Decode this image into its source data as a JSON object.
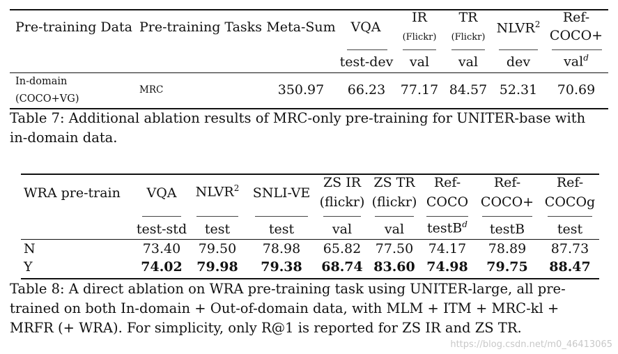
{
  "table7": {
    "headers": [
      {
        "line1": "Pre-training Data"
      },
      {
        "line1": "Pre-training Tasks"
      },
      {
        "line1": "Meta-Sum"
      },
      {
        "line1": "VQA",
        "sub": "test-dev"
      },
      {
        "line1": "IR",
        "line2": "(Flickr)",
        "sub": "val"
      },
      {
        "line1": "TR",
        "line2": "(Flickr)",
        "sub": "val"
      },
      {
        "line1": "NLVR",
        "sup": "2",
        "sub": "dev"
      },
      {
        "line1": "Ref-",
        "line2": "COCO+",
        "sub": "val",
        "subsup": "d"
      }
    ],
    "row": {
      "data_line1": "In-domain",
      "data_line2": "(COCO+VG)",
      "tasks": "MRC",
      "values": [
        "350.97",
        "66.23",
        "77.17",
        "84.57",
        "52.31",
        "70.69"
      ]
    },
    "caption_line1": "Table 7: Additional ablation results of MRC-only pre-training for UNITER-base with",
    "caption_line2": "in-domain data."
  },
  "table8": {
    "headers": [
      {
        "line1": "WRA pre-train"
      },
      {
        "line1": "VQA",
        "sub": "test-std"
      },
      {
        "line1": "NLVR",
        "sup": "2",
        "sub": "test"
      },
      {
        "line1": "SNLI-VE",
        "sub": "test"
      },
      {
        "line1": "ZS IR",
        "line2": "(flickr)",
        "sub": "val"
      },
      {
        "line1": "ZS TR",
        "line2": "(flickr)",
        "sub": "val"
      },
      {
        "line1": "Ref-",
        "line2": "COCO",
        "sub": "testB",
        "subsup": "d"
      },
      {
        "line1": "Ref-",
        "line2": "COCO+",
        "sub": "testB"
      },
      {
        "line1": "Ref-",
        "line2": "COCOg",
        "sub": "test"
      }
    ],
    "rows": [
      {
        "label": "N",
        "values": [
          "73.40",
          "79.50",
          "78.98",
          "65.82",
          "77.50",
          "74.17",
          "78.89",
          "87.73"
        ]
      },
      {
        "label": "Y",
        "values": [
          "74.02",
          "79.98",
          "79.38",
          "68.74",
          "83.60",
          "74.98",
          "79.75",
          "88.47"
        ]
      }
    ],
    "caption_line1": "Table 8: A direct ablation on WRA pre-training task using UNITER-large, all pre-",
    "caption_line2": "trained on both In-domain + Out-of-domain data, with MLM + ITM + MRC-kl +",
    "caption_line3": "MRFR (+ WRA). For simplicity, only R@1 is reported for ZS IR and ZS TR."
  },
  "watermark": "https://blog.csdn.net/m0_46413065"
}
